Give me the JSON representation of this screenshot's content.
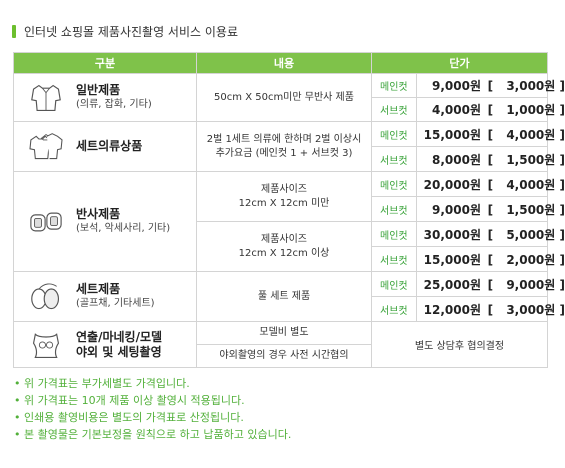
{
  "title": "인터넷 쇼핑몰 제품사진촬영 서비스 이용료",
  "headers": {
    "category": "구분",
    "content": "내용",
    "price": "단가"
  },
  "rows": [
    {
      "name": "일반제품",
      "sub": "(의류, 잡화, 기타)",
      "icon": "shirt-icon",
      "content": "50cm X 50cm미만 무반사 제품",
      "prices": [
        {
          "cut": "메인컷",
          "price": "9,000원",
          "extra": "3,000원"
        },
        {
          "cut": "서브컷",
          "price": "4,000원",
          "extra": "1,000원"
        }
      ]
    },
    {
      "name": "세트의류상품",
      "sub": "",
      "icon": "shirt-set-icon",
      "content": "2벌 1세트 의류에 한하며 2벌 이상시 추가요금 (메인컷 1 + 서브컷 3)",
      "prices": [
        {
          "cut": "메인컷",
          "price": "15,000원",
          "extra": "4,000원"
        },
        {
          "cut": "서브컷",
          "price": "8,000원",
          "extra": "1,500원"
        }
      ]
    },
    {
      "name": "반사제품",
      "sub": "(보석, 악세사리, 기타)",
      "icon": "watch-icon",
      "content_a": "제품사이즈",
      "content_b": "12cm X 12cm 미만",
      "content_c": "제품사이즈",
      "content_d": "12cm X 12cm 이상",
      "prices": [
        {
          "cut": "메인컷",
          "price": "20,000원",
          "extra": "4,000원"
        },
        {
          "cut": "서브컷",
          "price": "9,000원",
          "extra": "1,500원"
        },
        {
          "cut": "메인컷",
          "price": "30,000원",
          "extra": "5,000원"
        },
        {
          "cut": "서브컷",
          "price": "15,000원",
          "extra": "2,000원"
        }
      ]
    },
    {
      "name": "세트제품",
      "sub": "(골프채, 기타세트)",
      "icon": "golf-bag-icon",
      "content": "풀 세트 제품",
      "prices": [
        {
          "cut": "메인컷",
          "price": "25,000원",
          "extra": "9,000원"
        },
        {
          "cut": "서브컷",
          "price": "12,000원",
          "extra": "3,000원"
        }
      ]
    },
    {
      "name": "연출/마네킹/모델",
      "name2": "야외 및 세팅촬영",
      "icon": "mannequin-icon",
      "content_a": "모델비 별도",
      "content_b": "야외촬영의 경우 사전 시간협의",
      "negotiate": "별도 상담후 협의결정"
    }
  ],
  "notes": [
    "위 가격표는 부가세별도 가격입니다.",
    "위 가격표는 10개 제품 이상 촬영시 적용됩니다.",
    "인쇄용 촬영비용은 별도의 가격표로 산정됩니다.",
    "본 촬영물은 기본보정을 원칙으로 하고 납품하고 있습니다."
  ],
  "colors": {
    "header": "#7fc24a",
    "accent_text": "#52b03a",
    "cut_text": "#3aa33a"
  }
}
